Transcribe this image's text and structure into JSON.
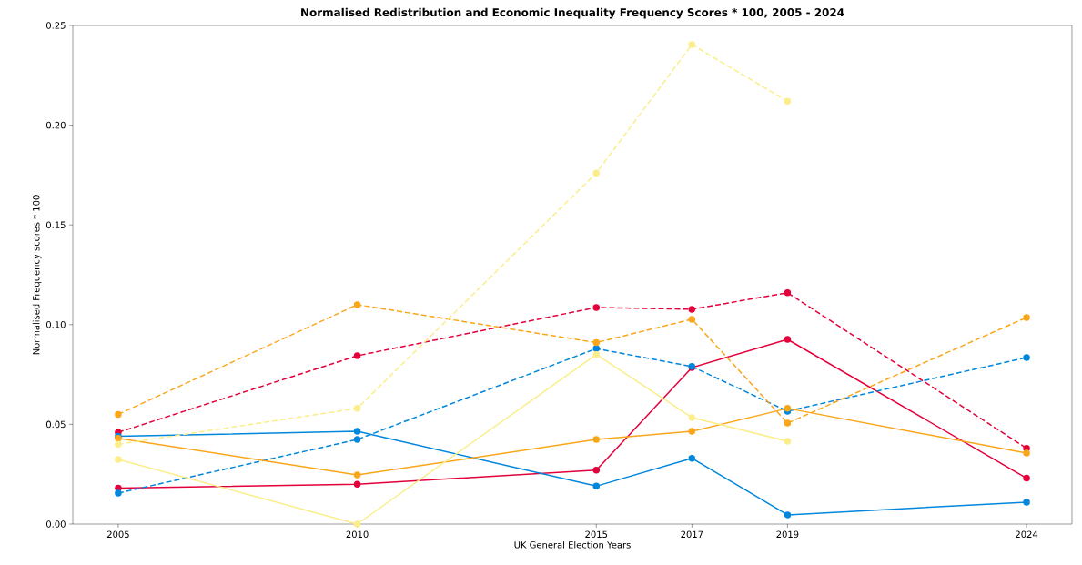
{
  "chart_data": {
    "type": "line",
    "title": "Normalised Redistribution and Economic Inequality Frequency Scores * 100, 2005 - 2024",
    "xlabel": "UK General Election Years",
    "ylabel": "Normalised Frequency scores * 100",
    "x": [
      2005,
      2010,
      2015,
      2017,
      2019,
      2024
    ],
    "series": [
      {
        "color": "#e4003b",
        "line_style": "solid",
        "values": [
          0.018,
          0.02,
          0.027,
          0.0785,
          0.0926,
          0.023
        ]
      },
      {
        "color": "#e4003b",
        "line_style": "dashed",
        "values": [
          0.046,
          0.0844,
          0.1086,
          0.1077,
          0.116,
          0.038
        ]
      },
      {
        "color": "#0087dc",
        "line_style": "solid",
        "values": [
          0.044,
          0.0465,
          0.019,
          0.033,
          0.0046,
          0.011
        ]
      },
      {
        "color": "#0087dc",
        "line_style": "dashed",
        "values": [
          0.0155,
          0.0424,
          0.088,
          0.079,
          0.0566,
          0.0835
        ]
      },
      {
        "color": "#faa61a",
        "line_style": "solid",
        "values": [
          0.043,
          0.0246,
          0.0424,
          0.0465,
          0.058,
          0.0356
        ]
      },
      {
        "color": "#faa61a",
        "line_style": "dashed",
        "values": [
          0.055,
          0.11,
          0.091,
          0.1027,
          0.0506,
          0.1036
        ]
      },
      {
        "color": "#fbee8a",
        "line_style": "solid",
        "values": [
          0.0324,
          0.0,
          0.085,
          0.0534,
          0.0415,
          null
        ]
      },
      {
        "color": "#fbee8a",
        "line_style": "dashed",
        "values": [
          0.04,
          0.058,
          0.176,
          0.2404,
          0.212,
          null
        ]
      }
    ],
    "marker": "circle",
    "grid": false,
    "xlim": [
      2004.05,
      2024.95
    ],
    "ylim": [
      0,
      0.25
    ],
    "xticks": [
      2005,
      2010,
      2015,
      2017,
      2019,
      2024
    ],
    "yticks": [
      {
        "value": 0,
        "label": "0.00"
      },
      {
        "value": 0.05,
        "label": "0.05"
      },
      {
        "value": 0.1,
        "label": "0.10"
      },
      {
        "value": 0.15,
        "label": "0.15"
      },
      {
        "value": 0.2,
        "label": "0.20"
      },
      {
        "value": 0.25,
        "label": "0.25"
      }
    ]
  }
}
